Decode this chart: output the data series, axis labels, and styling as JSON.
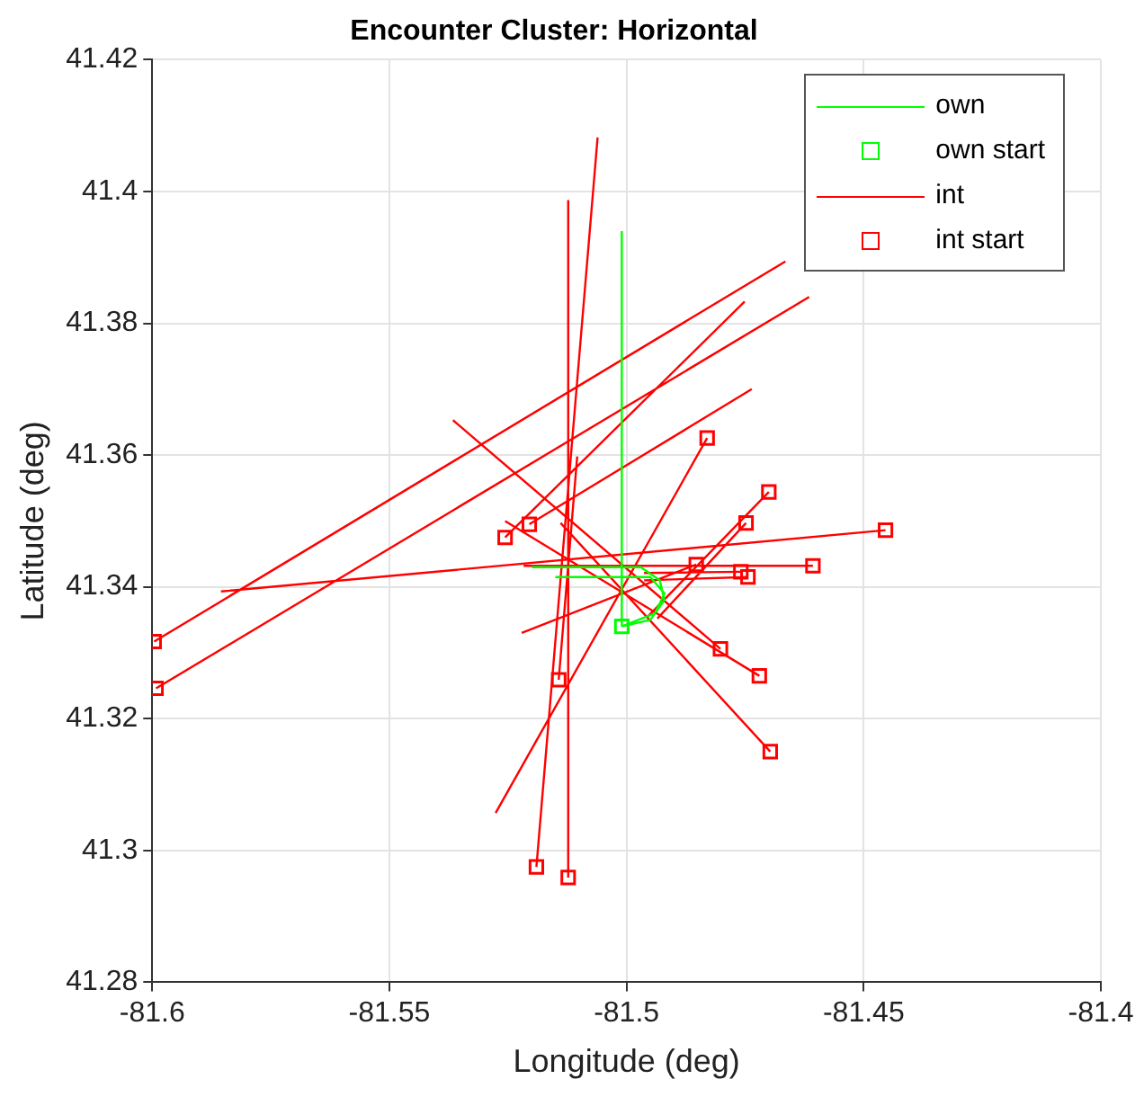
{
  "chart_data": {
    "type": "line",
    "title": "Encounter Cluster: Horizontal",
    "xlabel": "Longitude (deg)",
    "ylabel": "Latitude (deg)",
    "xlim": [
      -81.6,
      -81.4
    ],
    "xticks": [
      -81.6,
      -81.55,
      -81.5,
      -81.45,
      -81.4
    ],
    "ylim": [
      41.28,
      41.42
    ],
    "yticks": [
      41.28,
      41.3,
      41.32,
      41.34,
      41.36,
      41.38,
      41.4,
      41.42
    ],
    "grid": true,
    "legend": "top right",
    "series": [
      {
        "name": "own",
        "color": "#00ff00",
        "marker": "none",
        "x": [
          -81.501,
          -81.501,
          null,
          -81.501,
          -81.495,
          -81.492,
          -81.493,
          -81.497,
          -81.52,
          null,
          -81.501,
          -81.494,
          -81.492,
          -81.495,
          -81.515
        ],
        "values": [
          41.334,
          41.394,
          null,
          41.334,
          41.335,
          41.338,
          41.341,
          41.343,
          41.343,
          null,
          41.334,
          41.336,
          41.339,
          41.3415,
          41.3415
        ]
      },
      {
        "name": "own start",
        "type": "scatter",
        "color": "#00ff00",
        "marker": "square",
        "x": [
          -81.501
        ],
        "values": [
          41.334
        ]
      },
      {
        "name": "int",
        "color": "#ff0000",
        "marker": "none",
        "x": [
          -81.5996,
          -81.4665,
          null,
          -81.5992,
          -81.4615,
          null,
          -81.5256,
          -81.4751,
          null,
          -81.5205,
          -81.4736,
          null,
          -81.483,
          -81.5276,
          null,
          -81.47,
          -81.4955,
          null,
          -81.4748,
          -81.4935,
          null,
          -81.4454,
          -81.5855,
          null,
          -81.4853,
          -81.5221,
          null,
          -81.4607,
          -81.5217,
          null,
          -81.4759,
          -81.4963,
          null,
          -81.4744,
          -81.4963,
          null,
          -81.4802,
          -81.5366,
          null,
          -81.472,
          -81.5256,
          null,
          -81.4697,
          -81.5139,
          null,
          -81.5143,
          -81.5104,
          null,
          -81.519,
          -81.5061,
          null,
          -81.5123,
          -81.5123
        ],
        "values": [
          41.3317,
          41.3894,
          null,
          41.3246,
          41.384,
          null,
          41.3475,
          41.3833,
          null,
          41.3495,
          41.37,
          null,
          41.3626,
          41.3057,
          null,
          41.3544,
          41.3355,
          null,
          41.3497,
          41.3352,
          null,
          41.3486,
          41.3393,
          null,
          41.3434,
          41.333,
          null,
          41.3432,
          41.3432,
          null,
          41.3423,
          41.3421,
          null,
          41.3415,
          41.341,
          null,
          41.3306,
          41.3653,
          null,
          41.3265,
          41.35,
          null,
          41.315,
          41.3497,
          null,
          41.3259,
          41.3598,
          null,
          41.2975,
          41.4082,
          null,
          41.2959,
          41.3987
        ]
      },
      {
        "name": "int start",
        "type": "scatter",
        "color": "#ff0000",
        "marker": "square",
        "x": [
          -81.5996,
          -81.5992,
          -81.5256,
          -81.5205,
          -81.483,
          -81.47,
          -81.4748,
          -81.4454,
          -81.4853,
          -81.4607,
          -81.4759,
          -81.4744,
          -81.4802,
          -81.472,
          -81.4697,
          -81.5143,
          -81.519,
          -81.5123
        ],
        "values": [
          41.3317,
          41.3246,
          41.3475,
          41.3495,
          41.3626,
          41.3544,
          41.3497,
          41.3486,
          41.3434,
          41.3432,
          41.3423,
          41.3415,
          41.3306,
          41.3265,
          41.315,
          41.3259,
          41.2975,
          41.2959
        ]
      }
    ]
  }
}
